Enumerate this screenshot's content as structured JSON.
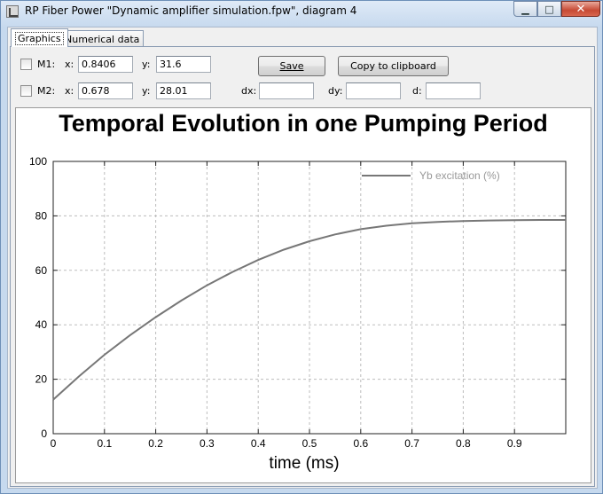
{
  "window": {
    "title": "RP Fiber Power \"Dynamic amplifier simulation.fpw\", diagram 4",
    "minimize_glyph": "▁",
    "maximize_glyph": "□",
    "close_glyph": "✕"
  },
  "tabs": [
    {
      "label": "Graphics",
      "active": true
    },
    {
      "label": "Numerical data",
      "active": false
    }
  ],
  "markers": {
    "m1": {
      "label": "M1:",
      "checked": false,
      "x_label": "x:",
      "x": "0.8406",
      "y_label": "y:",
      "y": "31.6"
    },
    "m2": {
      "label": "M2:",
      "checked": false,
      "x_label": "x:",
      "x": "0.678",
      "y_label": "y:",
      "y": "28.01"
    }
  },
  "deltas": {
    "dx_label": "dx:",
    "dx": "",
    "dy_label": "dy:",
    "dy": "",
    "d_label": "d:",
    "d": ""
  },
  "buttons": {
    "save": "Save",
    "copy": "Copy to clipboard"
  },
  "chart_data": {
    "type": "line",
    "title": "Temporal Evolution in one Pumping Period",
    "xlabel": "time (ms)",
    "ylabel": "",
    "xlim": [
      0,
      1
    ],
    "ylim": [
      0,
      100
    ],
    "xticks": [
      "0",
      "0.1",
      "0.2",
      "0.3",
      "0.4",
      "0.5",
      "0.6",
      "0.7",
      "0.8",
      "0.9"
    ],
    "yticks": [
      "0",
      "20",
      "40",
      "60",
      "80",
      "100"
    ],
    "grid": true,
    "legend_position": "top-right",
    "series": [
      {
        "name": "Yb excitation (%)",
        "color": "#777777",
        "x": [
          0,
          0.05,
          0.1,
          0.15,
          0.2,
          0.25,
          0.3,
          0.35,
          0.4,
          0.45,
          0.5,
          0.55,
          0.6,
          0.65,
          0.7,
          0.75,
          0.8,
          0.85,
          0.9,
          0.95,
          1.0
        ],
        "y": [
          12.5,
          21.0,
          29.0,
          36.2,
          42.8,
          48.9,
          54.5,
          59.4,
          63.8,
          67.6,
          70.7,
          73.2,
          75.1,
          76.4,
          77.3,
          77.8,
          78.1,
          78.3,
          78.4,
          78.5,
          78.5
        ]
      }
    ]
  }
}
